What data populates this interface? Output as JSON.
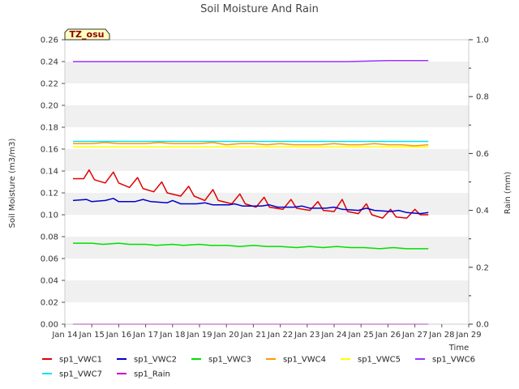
{
  "chart_data": {
    "type": "line",
    "title": "Soil Moisture And Rain",
    "xlabel": "Time",
    "ylabel": "Soil Moisture (m3/m3)",
    "y2label": "Rain (mm)",
    "badge": "TZ_osu",
    "x_ticks": [
      "Jan 14",
      "Jan 15",
      "Jan 16",
      "Jan 17",
      "Jan 18",
      "Jan 19",
      "Jan 20",
      "Jan 21",
      "Jan 22",
      "Jan 23",
      "Jan 24",
      "Jan 25",
      "Jan 26",
      "Jan 27",
      "Jan 28",
      "Jan 29"
    ],
    "y_ticks": [
      "0.00",
      "0.02",
      "0.04",
      "0.06",
      "0.08",
      "0.10",
      "0.12",
      "0.14",
      "0.16",
      "0.18",
      "0.20",
      "0.22",
      "0.24",
      "0.26"
    ],
    "y2_ticks": [
      "0.0",
      "0.2",
      "0.4",
      "0.6",
      "0.8",
      "1.0"
    ],
    "xlim": [
      0,
      15
    ],
    "ylim": [
      0,
      0.26
    ],
    "y2lim": [
      0,
      1.0
    ],
    "x_units": "days since Jan 14",
    "grid": "horizontal bands",
    "legend_position": "bottom",
    "series": [
      {
        "name": "sp1_VWC1",
        "color": "#e00000",
        "axis": "left",
        "points": [
          [
            0.3,
            0.133
          ],
          [
            0.7,
            0.133
          ],
          [
            0.9,
            0.141
          ],
          [
            1.1,
            0.132
          ],
          [
            1.5,
            0.129
          ],
          [
            1.8,
            0.139
          ],
          [
            2.0,
            0.129
          ],
          [
            2.4,
            0.125
          ],
          [
            2.7,
            0.134
          ],
          [
            2.9,
            0.124
          ],
          [
            3.3,
            0.121
          ],
          [
            3.6,
            0.13
          ],
          [
            3.8,
            0.12
          ],
          [
            4.3,
            0.117
          ],
          [
            4.6,
            0.126
          ],
          [
            4.8,
            0.117
          ],
          [
            5.2,
            0.113
          ],
          [
            5.5,
            0.123
          ],
          [
            5.7,
            0.113
          ],
          [
            6.2,
            0.11
          ],
          [
            6.5,
            0.119
          ],
          [
            6.7,
            0.11
          ],
          [
            7.1,
            0.107
          ],
          [
            7.4,
            0.116
          ],
          [
            7.6,
            0.107
          ],
          [
            8.1,
            0.105
          ],
          [
            8.4,
            0.114
          ],
          [
            8.6,
            0.106
          ],
          [
            9.1,
            0.104
          ],
          [
            9.4,
            0.112
          ],
          [
            9.6,
            0.104
          ],
          [
            10.0,
            0.103
          ],
          [
            10.3,
            0.114
          ],
          [
            10.5,
            0.103
          ],
          [
            10.9,
            0.101
          ],
          [
            11.2,
            0.11
          ],
          [
            11.4,
            0.1
          ],
          [
            11.8,
            0.097
          ],
          [
            12.1,
            0.105
          ],
          [
            12.3,
            0.098
          ],
          [
            12.7,
            0.097
          ],
          [
            13.0,
            0.105
          ],
          [
            13.2,
            0.1
          ],
          [
            13.5,
            0.1
          ]
        ]
      },
      {
        "name": "sp1_VWC2",
        "color": "#0000cc",
        "axis": "left",
        "points": [
          [
            0.3,
            0.113
          ],
          [
            0.8,
            0.114
          ],
          [
            1.0,
            0.112
          ],
          [
            1.5,
            0.113
          ],
          [
            1.8,
            0.115
          ],
          [
            2.0,
            0.112
          ],
          [
            2.6,
            0.112
          ],
          [
            2.9,
            0.114
          ],
          [
            3.2,
            0.112
          ],
          [
            3.8,
            0.111
          ],
          [
            4.0,
            0.113
          ],
          [
            4.3,
            0.11
          ],
          [
            4.9,
            0.11
          ],
          [
            5.2,
            0.111
          ],
          [
            5.5,
            0.109
          ],
          [
            6.1,
            0.109
          ],
          [
            6.3,
            0.11
          ],
          [
            6.6,
            0.108
          ],
          [
            7.3,
            0.108
          ],
          [
            7.6,
            0.109
          ],
          [
            7.9,
            0.107
          ],
          [
            8.5,
            0.107
          ],
          [
            8.8,
            0.108
          ],
          [
            9.1,
            0.106
          ],
          [
            9.7,
            0.106
          ],
          [
            10.0,
            0.107
          ],
          [
            10.3,
            0.105
          ],
          [
            10.9,
            0.104
          ],
          [
            11.2,
            0.106
          ],
          [
            11.5,
            0.104
          ],
          [
            12.1,
            0.103
          ],
          [
            12.4,
            0.104
          ],
          [
            12.7,
            0.102
          ],
          [
            13.2,
            0.101
          ],
          [
            13.5,
            0.102
          ]
        ]
      },
      {
        "name": "sp1_VWC3",
        "color": "#00e000",
        "axis": "left",
        "points": [
          [
            0.3,
            0.074
          ],
          [
            1.0,
            0.074
          ],
          [
            1.4,
            0.073
          ],
          [
            2.0,
            0.074
          ],
          [
            2.4,
            0.073
          ],
          [
            3.0,
            0.073
          ],
          [
            3.4,
            0.072
          ],
          [
            4.0,
            0.073
          ],
          [
            4.4,
            0.072
          ],
          [
            5.0,
            0.073
          ],
          [
            5.4,
            0.072
          ],
          [
            6.0,
            0.072
          ],
          [
            6.5,
            0.071
          ],
          [
            7.0,
            0.072
          ],
          [
            7.5,
            0.071
          ],
          [
            8.0,
            0.071
          ],
          [
            8.6,
            0.07
          ],
          [
            9.1,
            0.071
          ],
          [
            9.6,
            0.07
          ],
          [
            10.1,
            0.071
          ],
          [
            10.6,
            0.07
          ],
          [
            11.1,
            0.07
          ],
          [
            11.7,
            0.069
          ],
          [
            12.2,
            0.07
          ],
          [
            12.7,
            0.069
          ],
          [
            13.2,
            0.069
          ],
          [
            13.5,
            0.069
          ]
        ]
      },
      {
        "name": "sp1_VWC4",
        "color": "#ff9900",
        "axis": "left",
        "points": [
          [
            0.3,
            0.165
          ],
          [
            1.0,
            0.165
          ],
          [
            1.5,
            0.166
          ],
          [
            2.0,
            0.165
          ],
          [
            3.0,
            0.165
          ],
          [
            3.5,
            0.166
          ],
          [
            4.0,
            0.165
          ],
          [
            5.0,
            0.165
          ],
          [
            5.5,
            0.166
          ],
          [
            6.0,
            0.164
          ],
          [
            6.5,
            0.165
          ],
          [
            7.0,
            0.165
          ],
          [
            7.5,
            0.164
          ],
          [
            8.0,
            0.165
          ],
          [
            8.5,
            0.164
          ],
          [
            9.0,
            0.164
          ],
          [
            9.5,
            0.164
          ],
          [
            10.0,
            0.165
          ],
          [
            10.5,
            0.164
          ],
          [
            11.0,
            0.164
          ],
          [
            11.5,
            0.165
          ],
          [
            12.0,
            0.164
          ],
          [
            12.5,
            0.164
          ],
          [
            13.0,
            0.163
          ],
          [
            13.5,
            0.164
          ]
        ]
      },
      {
        "name": "sp1_VWC5",
        "color": "#ffff00",
        "axis": "left",
        "points": [
          [
            0.3,
            0.162
          ],
          [
            1.5,
            0.162
          ],
          [
            3.0,
            0.162
          ],
          [
            4.5,
            0.162
          ],
          [
            6.0,
            0.162
          ],
          [
            7.5,
            0.162
          ],
          [
            9.0,
            0.162
          ],
          [
            10.5,
            0.162
          ],
          [
            12.0,
            0.162
          ],
          [
            13.5,
            0.162
          ]
        ]
      },
      {
        "name": "sp1_VWC6",
        "color": "#9933ff",
        "axis": "left",
        "points": [
          [
            0.3,
            0.24
          ],
          [
            1.5,
            0.24
          ],
          [
            3.0,
            0.24
          ],
          [
            4.5,
            0.24
          ],
          [
            6.0,
            0.24
          ],
          [
            7.5,
            0.24
          ],
          [
            9.0,
            0.24
          ],
          [
            10.5,
            0.24
          ],
          [
            12.0,
            0.241
          ],
          [
            13.0,
            0.241
          ],
          [
            13.5,
            0.241
          ]
        ]
      },
      {
        "name": "sp1_VWC7",
        "color": "#00e5ee",
        "axis": "left",
        "points": [
          [
            0.3,
            0.167
          ],
          [
            1.5,
            0.167
          ],
          [
            3.0,
            0.167
          ],
          [
            4.5,
            0.167
          ],
          [
            6.0,
            0.167
          ],
          [
            7.5,
            0.167
          ],
          [
            9.0,
            0.167
          ],
          [
            10.5,
            0.167
          ],
          [
            12.0,
            0.167
          ],
          [
            13.5,
            0.167
          ]
        ]
      },
      {
        "name": "sp1_Rain",
        "color": "#cc00cc",
        "axis": "right",
        "points": [
          [
            0.3,
            0.0
          ],
          [
            13.5,
            0.0
          ]
        ]
      }
    ],
    "legend": [
      {
        "label": "sp1_VWC1",
        "color": "#e00000"
      },
      {
        "label": "sp1_VWC2",
        "color": "#0000cc"
      },
      {
        "label": "sp1_VWC3",
        "color": "#00e000"
      },
      {
        "label": "sp1_VWC4",
        "color": "#ff9900"
      },
      {
        "label": "sp1_VWC5",
        "color": "#ffff00"
      },
      {
        "label": "sp1_VWC6",
        "color": "#9933ff"
      },
      {
        "label": "sp1_VWC7",
        "color": "#00e5ee"
      },
      {
        "label": "sp1_Rain",
        "color": "#cc00cc"
      }
    ]
  }
}
